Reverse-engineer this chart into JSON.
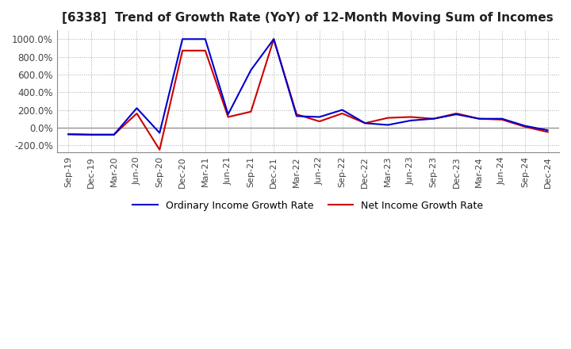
{
  "title": "[6338]  Trend of Growth Rate (YoY) of 12-Month Moving Sum of Incomes",
  "title_fontsize": 11,
  "background_color": "#ffffff",
  "grid_color": "#aaaaaa",
  "ylim": [
    -280,
    1100
  ],
  "yticks": [
    -200,
    0,
    200,
    400,
    600,
    800,
    1000
  ],
  "legend_labels": [
    "Ordinary Income Growth Rate",
    "Net Income Growth Rate"
  ],
  "legend_colors": [
    "#0000cc",
    "#cc0000"
  ],
  "x_labels": [
    "Sep-19",
    "Dec-19",
    "Mar-20",
    "Jun-20",
    "Sep-20",
    "Dec-20",
    "Mar-21",
    "Jun-21",
    "Sep-21",
    "Dec-21",
    "Mar-22",
    "Jun-22",
    "Sep-22",
    "Dec-22",
    "Mar-23",
    "Jun-23",
    "Sep-23",
    "Dec-23",
    "Mar-24",
    "Jun-24",
    "Sep-24",
    "Dec-24"
  ],
  "ordinary_income_growth": [
    -75,
    -80,
    -80,
    220,
    -60,
    1000,
    1000,
    150,
    650,
    1000,
    130,
    120,
    200,
    50,
    30,
    80,
    100,
    150,
    100,
    100,
    20,
    -30
  ],
  "net_income_growth": [
    -75,
    -80,
    -80,
    160,
    -250,
    870,
    870,
    120,
    180,
    1000,
    150,
    70,
    160,
    50,
    110,
    120,
    100,
    160,
    100,
    90,
    10,
    -50
  ]
}
